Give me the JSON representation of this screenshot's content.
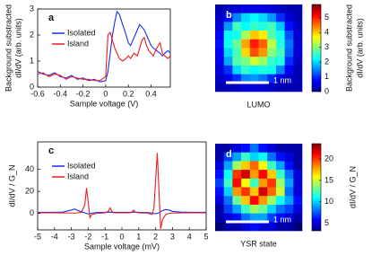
{
  "chart_data": [
    {
      "type": "line",
      "label": "a",
      "xlabel": "Sample voltage (V)",
      "ylabel": [
        "Background substracted",
        "dI/dV (arb. units)"
      ],
      "x": [
        -0.6,
        -0.55,
        -0.5,
        -0.45,
        -0.4,
        -0.35,
        -0.3,
        -0.25,
        -0.2,
        -0.15,
        -0.1,
        -0.05,
        0,
        0.02,
        0.04,
        0.06,
        0.08,
        0.1,
        0.12,
        0.15,
        0.18,
        0.2,
        0.22,
        0.25,
        0.28,
        0.3,
        0.32,
        0.34,
        0.36,
        0.38,
        0.4,
        0.42,
        0.45,
        0.48,
        0.5,
        0.52,
        0.55,
        0.57
      ],
      "series": [
        {
          "name": "Isolated",
          "color": "#1a2cf0",
          "values": [
            0.6,
            0.5,
            0.45,
            0.55,
            0.4,
            0.35,
            0.45,
            0.3,
            0.35,
            0.25,
            0.3,
            0.2,
            0.25,
            0.6,
            1.3,
            2.0,
            2.5,
            2.9,
            2.8,
            2.4,
            2.0,
            1.7,
            1.6,
            1.9,
            2.2,
            2.4,
            2.3,
            2.2,
            2.0,
            1.8,
            1.6,
            1.5,
            1.4,
            1.3,
            1.2,
            1.3,
            1.4,
            1.3
          ]
        },
        {
          "name": "Island",
          "color": "#ee1c1c",
          "values": [
            0.5,
            0.55,
            0.4,
            0.5,
            0.45,
            0.3,
            0.4,
            0.35,
            0.3,
            0.3,
            0.25,
            0.25,
            0.4,
            2.0,
            2.1,
            1.8,
            1.5,
            1.3,
            1.1,
            1.0,
            1.1,
            1.2,
            1.1,
            1.3,
            1.2,
            1.5,
            1.8,
            1.9,
            1.6,
            1.4,
            1.3,
            1.2,
            1.5,
            1.7,
            1.3,
            1.2,
            1.1,
            1.2
          ]
        }
      ],
      "xlim": [
        -0.6,
        0.57
      ],
      "xticks": [
        -0.6,
        -0.4,
        -0.2,
        0,
        0.2,
        0.4
      ],
      "ylim": [
        0,
        3
      ],
      "yticks": [
        0,
        1,
        2,
        3
      ]
    },
    {
      "type": "heatmap",
      "label": "b",
      "caption": "LUMO",
      "scale_bar": "1 nm",
      "colormap": "jet",
      "colorbar_label": [
        "Background substracted",
        "dI/dV (arb. units)"
      ],
      "zlim": [
        0,
        5.9
      ],
      "zticks": [
        0,
        1,
        2,
        3,
        4,
        5
      ],
      "z": [
        [
          0.3,
          0.4,
          0.5,
          0.6,
          0.6,
          0.6,
          0.5,
          0.4,
          0.3,
          0.3
        ],
        [
          0.4,
          0.8,
          1.5,
          2.0,
          2.2,
          2.0,
          1.6,
          1.0,
          0.5,
          0.3
        ],
        [
          0.5,
          1.6,
          2.6,
          2.2,
          2.5,
          2.4,
          2.6,
          1.9,
          0.8,
          0.4
        ],
        [
          0.7,
          2.2,
          2.3,
          3.2,
          4.0,
          3.8,
          2.7,
          2.3,
          1.2,
          0.5
        ],
        [
          0.8,
          2.3,
          2.8,
          4.2,
          5.0,
          4.6,
          3.3,
          2.4,
          1.4,
          0.5
        ],
        [
          0.7,
          2.0,
          2.6,
          3.9,
          4.7,
          4.3,
          3.0,
          2.6,
          1.3,
          0.5
        ],
        [
          0.6,
          1.7,
          2.7,
          2.9,
          3.4,
          3.1,
          2.5,
          2.4,
          1.0,
          0.4
        ],
        [
          0.5,
          1.0,
          2.0,
          2.5,
          2.2,
          2.4,
          2.3,
          1.5,
          0.7,
          0.3
        ],
        [
          0.4,
          0.6,
          1.0,
          1.5,
          1.6,
          1.4,
          1.0,
          0.6,
          0.4,
          0.3
        ],
        [
          0.3,
          0.3,
          0.4,
          0.5,
          0.5,
          0.5,
          0.4,
          0.3,
          0.3,
          0.3
        ]
      ]
    },
    {
      "type": "line",
      "label": "c",
      "xlabel": "Sample voltage (mV)",
      "ylabel": [
        "dI/dV / G_N"
      ],
      "x": [
        -5,
        -4,
        -3.5,
        -3,
        -2.8,
        -2.6,
        -2.4,
        -2.2,
        -2.1,
        -2.0,
        -1.9,
        -1.8,
        -1.5,
        -1,
        -0.8,
        -0.7,
        -0.6,
        -0.5,
        0,
        0.5,
        0.6,
        0.7,
        0.8,
        1,
        1.5,
        1.8,
        1.9,
        2.0,
        2.1,
        2.2,
        2.3,
        2.4,
        2.6,
        2.8,
        3,
        3.5,
        4,
        5
      ],
      "series": [
        {
          "name": "Isolated",
          "color": "#1a2cf0",
          "values": [
            1,
            1,
            1.2,
            3,
            4,
            2.5,
            1.5,
            0.5,
            0,
            -0.5,
            -0.3,
            0.3,
            0.8,
            1,
            1.1,
            1.2,
            1,
            1,
            1,
            1,
            1,
            1.1,
            1.2,
            1,
            0.8,
            0.3,
            0,
            -0.3,
            0,
            0.5,
            1.5,
            2.5,
            3.5,
            3,
            1.8,
            1.2,
            1,
            1
          ]
        },
        {
          "name": "Island",
          "color": "#ee1c1c",
          "values": [
            0.5,
            0.5,
            0.4,
            0.3,
            0.3,
            0.5,
            1,
            8,
            23,
            10,
            -4,
            -1,
            0,
            0.5,
            2,
            5,
            2,
            0.5,
            0.5,
            0.5,
            1.5,
            3,
            1,
            0.5,
            0.3,
            -1,
            5,
            30,
            55,
            20,
            -14,
            -6,
            -1,
            0,
            0.3,
            0.4,
            0.5,
            0.5
          ]
        }
      ],
      "xlim": [
        -5,
        5
      ],
      "xticks": [
        -5,
        -4,
        -3,
        -2,
        -1,
        0,
        1,
        2,
        3,
        4,
        5
      ],
      "ylim": [
        -15,
        65
      ],
      "yticks": [
        0,
        20,
        40
      ]
    },
    {
      "type": "heatmap",
      "label": "d",
      "caption": "YSR state",
      "scale_bar": "1 nm",
      "colormap": "jet",
      "colorbar_label": [
        "dI/dV / G_N"
      ],
      "zlim": [
        3.2,
        23.6
      ],
      "zticks": [
        5,
        10,
        15,
        20
      ],
      "z": [
        [
          4,
          4,
          5,
          6,
          8,
          6,
          5,
          4,
          4,
          4
        ],
        [
          4,
          7,
          9,
          12,
          10,
          11,
          8,
          6,
          5,
          4
        ],
        [
          5,
          9,
          14,
          17,
          19,
          16,
          12,
          9,
          6,
          4
        ],
        [
          6,
          11,
          20,
          22,
          18,
          21,
          17,
          12,
          8,
          5
        ],
        [
          7,
          12,
          21,
          16,
          12,
          18,
          20,
          14,
          9,
          5
        ],
        [
          6,
          10,
          18,
          20,
          17,
          22,
          19,
          15,
          8,
          5
        ],
        [
          5,
          8,
          13,
          17,
          21,
          18,
          14,
          11,
          9,
          6
        ],
        [
          4,
          7,
          9,
          12,
          14,
          13,
          10,
          8,
          7,
          5
        ],
        [
          4,
          5,
          6,
          8,
          9,
          9,
          7,
          6,
          5,
          4
        ],
        [
          3,
          4,
          4,
          5,
          6,
          5,
          5,
          4,
          4,
          3
        ]
      ]
    }
  ]
}
